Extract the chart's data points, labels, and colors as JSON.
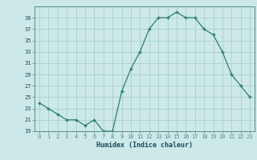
{
  "x": [
    0,
    1,
    2,
    3,
    4,
    5,
    6,
    7,
    8,
    9,
    10,
    11,
    12,
    13,
    14,
    15,
    16,
    17,
    18,
    19,
    20,
    21,
    22,
    23
  ],
  "y": [
    24,
    23,
    22,
    21,
    21,
    20,
    21,
    19,
    19,
    26,
    30,
    33,
    37,
    39,
    39,
    40,
    39,
    39,
    37,
    36,
    33,
    29,
    27,
    25
  ],
  "line_color": "#2e7d6e",
  "marker": "+",
  "bg_color": "#cce8e8",
  "grid_color": "#aacece",
  "xlabel": "Humidex (Indice chaleur)",
  "ylim": [
    19,
    41
  ],
  "yticks": [
    19,
    21,
    23,
    25,
    27,
    29,
    31,
    33,
    35,
    37,
    39
  ],
  "xlim": [
    -0.5,
    23.5
  ],
  "xticks": [
    0,
    1,
    2,
    3,
    4,
    5,
    6,
    7,
    8,
    9,
    10,
    11,
    12,
    13,
    14,
    15,
    16,
    17,
    18,
    19,
    20,
    21,
    22,
    23
  ],
  "xtick_labels": [
    "0",
    "1",
    "2",
    "3",
    "4",
    "5",
    "6",
    "7",
    "8",
    "9",
    "10",
    "11",
    "12",
    "13",
    "14",
    "15",
    "16",
    "17",
    "18",
    "19",
    "20",
    "21",
    "22",
    "23"
  ],
  "label_color": "#1a4a5a",
  "tick_color": "#1a4a5a",
  "spine_color": "#5a8a8a"
}
